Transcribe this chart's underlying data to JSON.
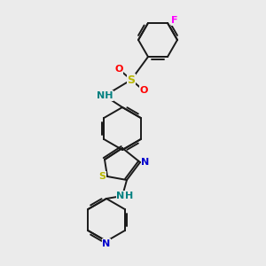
{
  "background_color": "#ebebeb",
  "bond_color": "#1a1a1a",
  "figsize": [
    3.0,
    3.0
  ],
  "dpi": 100,
  "atom_colors": {
    "F": "#ff00ff",
    "O": "#ff0000",
    "NH": "#008080",
    "N": "#0000cd",
    "S": "#b8b800",
    "H": "#008080"
  },
  "scale": 1.0
}
